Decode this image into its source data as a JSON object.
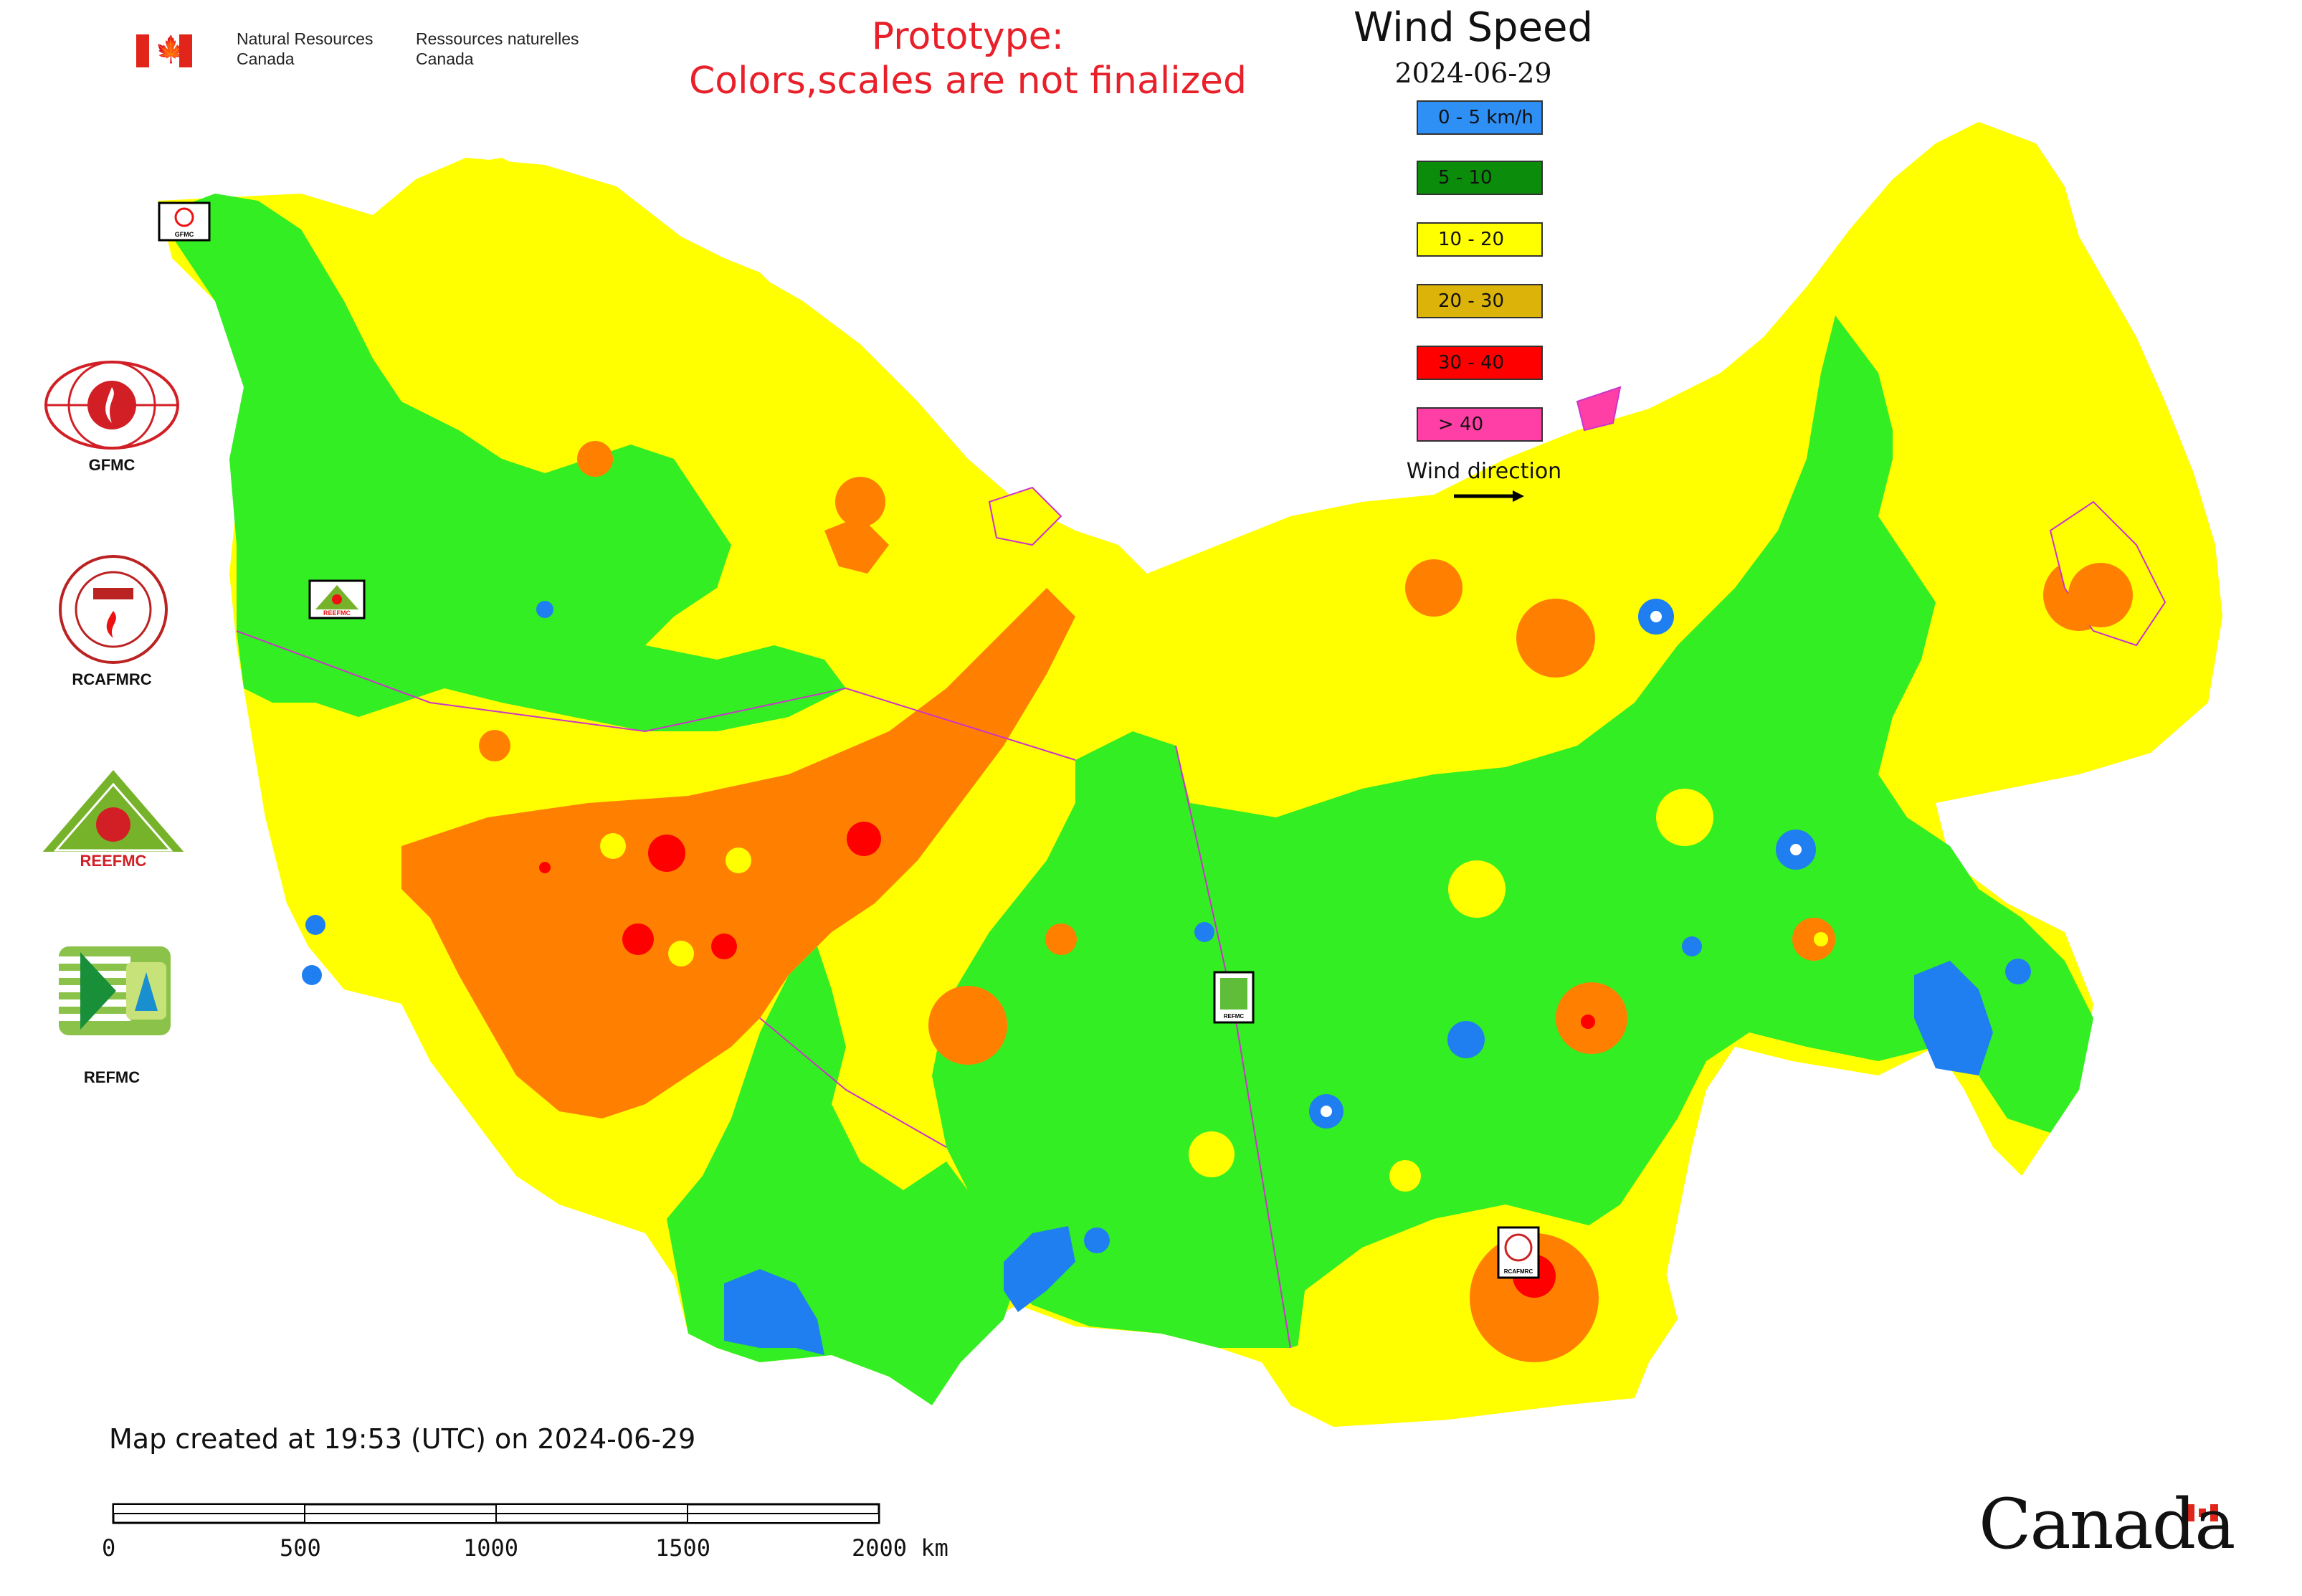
{
  "header": {
    "org_en": [
      "Natural Resources",
      "Canada"
    ],
    "org_fr": [
      "Ressources naturelles",
      "Canada"
    ],
    "prototype_line1": "Prototype:",
    "prototype_line2": "Colors,scales are not finalized"
  },
  "legend": {
    "title": "Wind Speed",
    "date": "2024-06-29",
    "items": [
      {
        "label": "0 - 5 km/h",
        "color": "#2e8ff5"
      },
      {
        "label": "5 - 10",
        "color": "#0b8d0b"
      },
      {
        "label": "10 - 20",
        "color": "#ffff00"
      },
      {
        "label": "20 - 30",
        "color": "#dcb308"
      },
      {
        "label": "30 - 40",
        "color": "#ff0000"
      },
      {
        "label": "> 40",
        "color": "#ff3fa6"
      }
    ],
    "wind_direction_label": "Wind direction"
  },
  "map_colors": {
    "green": "#33ee22",
    "yellow": "#ffff00",
    "orange": "#ff8000",
    "red": "#ff0000",
    "blue": "#1f7ff0",
    "border": "#cc33cc"
  },
  "logos": [
    {
      "caption": "GFMC",
      "icon": "gfmc-logo-icon"
    },
    {
      "caption": "RCAFMRC",
      "icon": "rcafmrc-logo-icon"
    },
    {
      "caption": "REEFMC",
      "icon": "reefmc-logo-icon"
    },
    {
      "caption": "REFMC",
      "icon": "refmc-logo-icon"
    }
  ],
  "map_markers": [
    {
      "caption": "GFMC",
      "icon": "gfmc-marker-icon"
    },
    {
      "caption": "REEFMC",
      "icon": "reefmc-marker-icon"
    },
    {
      "caption": "REFMC",
      "icon": "refmc-marker-icon"
    },
    {
      "caption": "RCAFMRC",
      "icon": "rcafmrc-marker-icon"
    }
  ],
  "footer": {
    "created": "Map created at 19:53 (UTC) on 2024-06-29",
    "scale_labels": [
      "0",
      "500",
      "1000",
      "1500",
      "2000 km"
    ],
    "wordmark": "Canad",
    "wordmark_tail": "a"
  }
}
